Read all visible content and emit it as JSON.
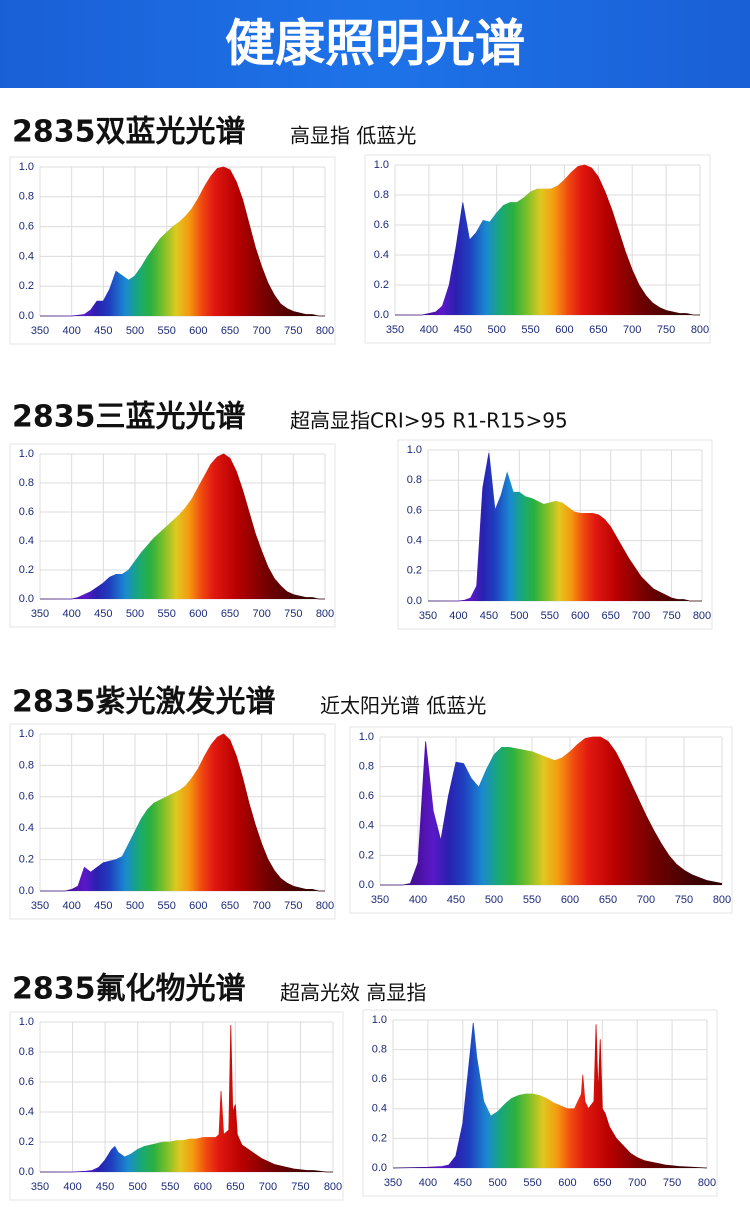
{
  "header": {
    "title": "健康照明光谱"
  },
  "sections": [
    {
      "title": "2835双蓝光光谱",
      "subtitle": "高显指 低蓝光"
    },
    {
      "title": "2835三蓝光光谱",
      "subtitle": "超高显指CRI>95  R1-R15>95"
    },
    {
      "title": "2835紫光激发光谱",
      "subtitle": "近太阳光谱 低蓝光"
    },
    {
      "title": "2835氟化物光谱",
      "subtitle": "超高光效 高显指"
    }
  ],
  "chart_data": [
    {
      "type": "area",
      "x": [
        350,
        360,
        370,
        380,
        390,
        400,
        410,
        420,
        430,
        440,
        450,
        460,
        470,
        480,
        490,
        500,
        510,
        520,
        530,
        540,
        550,
        560,
        570,
        580,
        590,
        600,
        610,
        620,
        630,
        640,
        650,
        660,
        670,
        680,
        690,
        700,
        710,
        720,
        730,
        740,
        750,
        760,
        770,
        780,
        790,
        800
      ],
      "values": [
        0,
        0,
        0,
        0,
        0,
        0,
        0.005,
        0.01,
        0.04,
        0.1,
        0.1,
        0.18,
        0.3,
        0.27,
        0.24,
        0.27,
        0.33,
        0.4,
        0.46,
        0.52,
        0.56,
        0.6,
        0.63,
        0.67,
        0.72,
        0.79,
        0.87,
        0.94,
        0.99,
        1.0,
        0.98,
        0.9,
        0.78,
        0.62,
        0.46,
        0.33,
        0.22,
        0.14,
        0.08,
        0.05,
        0.03,
        0.02,
        0.01,
        0.01,
        0,
        0
      ],
      "xlim": [
        350,
        800
      ],
      "ylim": [
        0,
        1
      ],
      "xticks": [
        350,
        400,
        450,
        500,
        550,
        600,
        650,
        700,
        750,
        800
      ],
      "yticks": [
        {
          "value": 0,
          "label": "0.0"
        },
        0.2,
        0.4,
        0.6,
        0.8,
        {
          "value": 1,
          "label": "1.0"
        }
      ],
      "grid": true
    },
    {
      "type": "area",
      "x": [
        350,
        360,
        370,
        380,
        390,
        400,
        410,
        420,
        430,
        440,
        450,
        460,
        470,
        480,
        490,
        500,
        510,
        520,
        530,
        540,
        550,
        560,
        570,
        580,
        590,
        600,
        610,
        620,
        630,
        640,
        650,
        660,
        670,
        680,
        690,
        700,
        710,
        720,
        730,
        740,
        750,
        760,
        770,
        780,
        790,
        800
      ],
      "values": [
        0,
        0,
        0,
        0,
        0,
        0.01,
        0.02,
        0.06,
        0.2,
        0.45,
        0.75,
        0.5,
        0.55,
        0.63,
        0.62,
        0.68,
        0.73,
        0.75,
        0.75,
        0.78,
        0.82,
        0.84,
        0.84,
        0.84,
        0.86,
        0.9,
        0.95,
        0.99,
        1.0,
        0.98,
        0.92,
        0.82,
        0.7,
        0.56,
        0.42,
        0.3,
        0.2,
        0.13,
        0.08,
        0.05,
        0.03,
        0.02,
        0.01,
        0.01,
        0,
        0
      ],
      "xlim": [
        350,
        800
      ],
      "ylim": [
        0,
        1
      ],
      "xticks": [
        350,
        400,
        450,
        500,
        550,
        600,
        650,
        700,
        750,
        800
      ],
      "yticks": [
        {
          "value": 0,
          "label": "0.0"
        },
        0.2,
        0.4,
        0.6,
        0.8,
        {
          "value": 1,
          "label": "1.0"
        }
      ],
      "grid": true
    },
    {
      "type": "area",
      "x": [
        350,
        360,
        370,
        380,
        390,
        400,
        410,
        420,
        430,
        440,
        450,
        460,
        470,
        480,
        490,
        500,
        510,
        520,
        530,
        540,
        550,
        560,
        570,
        580,
        590,
        600,
        610,
        620,
        630,
        640,
        650,
        660,
        670,
        680,
        690,
        700,
        710,
        720,
        730,
        740,
        750,
        760,
        770,
        780,
        790,
        800
      ],
      "values": [
        0,
        0,
        0,
        0,
        0,
        0,
        0.01,
        0.03,
        0.05,
        0.08,
        0.11,
        0.15,
        0.17,
        0.17,
        0.2,
        0.26,
        0.32,
        0.37,
        0.42,
        0.46,
        0.5,
        0.54,
        0.58,
        0.63,
        0.69,
        0.77,
        0.85,
        0.93,
        0.98,
        1.0,
        0.97,
        0.88,
        0.75,
        0.6,
        0.45,
        0.33,
        0.22,
        0.14,
        0.09,
        0.05,
        0.03,
        0.02,
        0.01,
        0.01,
        0,
        0
      ],
      "xlim": [
        350,
        800
      ],
      "ylim": [
        0,
        1
      ],
      "xticks": [
        350,
        400,
        450,
        500,
        550,
        600,
        650,
        700,
        750,
        800
      ],
      "yticks": [
        {
          "value": 0,
          "label": "0.0"
        },
        0.2,
        0.4,
        0.6,
        0.8,
        {
          "value": 1,
          "label": "1.0"
        }
      ],
      "grid": true
    },
    {
      "type": "area",
      "x": [
        350,
        360,
        370,
        380,
        390,
        400,
        410,
        420,
        430,
        440,
        450,
        460,
        470,
        480,
        490,
        500,
        510,
        520,
        530,
        540,
        550,
        560,
        570,
        580,
        590,
        600,
        610,
        620,
        630,
        640,
        650,
        660,
        670,
        680,
        690,
        700,
        710,
        720,
        730,
        740,
        750,
        760,
        770,
        780,
        790,
        800
      ],
      "values": [
        0,
        0,
        0,
        0,
        0,
        0,
        0.005,
        0.02,
        0.1,
        0.75,
        0.98,
        0.6,
        0.7,
        0.85,
        0.72,
        0.72,
        0.69,
        0.68,
        0.66,
        0.64,
        0.65,
        0.66,
        0.65,
        0.62,
        0.59,
        0.58,
        0.58,
        0.58,
        0.57,
        0.54,
        0.49,
        0.42,
        0.35,
        0.28,
        0.22,
        0.16,
        0.12,
        0.08,
        0.06,
        0.04,
        0.02,
        0.01,
        0.01,
        0,
        0,
        0
      ],
      "xlim": [
        350,
        800
      ],
      "ylim": [
        0,
        1
      ],
      "xticks": [
        350,
        400,
        450,
        500,
        550,
        600,
        650,
        700,
        750,
        800
      ],
      "yticks": [
        {
          "value": 0,
          "label": "0.0"
        },
        0.2,
        0.4,
        0.6,
        0.8,
        {
          "value": 1,
          "label": "1.0"
        }
      ],
      "grid": true
    },
    {
      "type": "area",
      "x": [
        350,
        360,
        370,
        380,
        390,
        400,
        410,
        420,
        430,
        440,
        450,
        460,
        470,
        480,
        490,
        500,
        510,
        520,
        530,
        540,
        550,
        560,
        570,
        580,
        590,
        600,
        610,
        620,
        630,
        640,
        650,
        660,
        670,
        680,
        690,
        700,
        710,
        720,
        730,
        740,
        750,
        760,
        770,
        780,
        790,
        800
      ],
      "values": [
        0,
        0,
        0,
        0,
        0,
        0.01,
        0.03,
        0.15,
        0.12,
        0.15,
        0.18,
        0.19,
        0.2,
        0.22,
        0.3,
        0.38,
        0.46,
        0.52,
        0.56,
        0.58,
        0.6,
        0.62,
        0.64,
        0.67,
        0.72,
        0.78,
        0.86,
        0.93,
        0.98,
        1.0,
        0.96,
        0.86,
        0.72,
        0.56,
        0.42,
        0.3,
        0.2,
        0.13,
        0.08,
        0.05,
        0.03,
        0.02,
        0.01,
        0.01,
        0,
        0
      ],
      "xlim": [
        350,
        800
      ],
      "ylim": [
        0,
        1
      ],
      "xticks": [
        350,
        400,
        450,
        500,
        550,
        600,
        650,
        700,
        750,
        800
      ],
      "yticks": [
        {
          "value": 0,
          "label": "0.0"
        },
        0.2,
        0.4,
        0.6,
        0.8,
        {
          "value": 1,
          "label": "1.0"
        }
      ],
      "grid": true
    },
    {
      "type": "area",
      "x": [
        350,
        360,
        370,
        380,
        390,
        400,
        410,
        420,
        430,
        440,
        450,
        460,
        470,
        480,
        490,
        500,
        510,
        520,
        530,
        540,
        550,
        560,
        570,
        580,
        590,
        600,
        610,
        620,
        630,
        640,
        650,
        660,
        670,
        680,
        690,
        700,
        710,
        720,
        730,
        740,
        750,
        760,
        770,
        780,
        790,
        800
      ],
      "values": [
        0,
        0,
        0,
        0,
        0.01,
        0.15,
        0.97,
        0.5,
        0.3,
        0.6,
        0.83,
        0.82,
        0.72,
        0.66,
        0.78,
        0.88,
        0.93,
        0.93,
        0.92,
        0.91,
        0.9,
        0.88,
        0.86,
        0.84,
        0.86,
        0.9,
        0.95,
        0.99,
        1.0,
        1.0,
        0.97,
        0.9,
        0.8,
        0.69,
        0.58,
        0.47,
        0.37,
        0.28,
        0.2,
        0.14,
        0.1,
        0.07,
        0.05,
        0.03,
        0.02,
        0.01
      ],
      "xlim": [
        350,
        800
      ],
      "ylim": [
        0,
        1
      ],
      "xticks": [
        350,
        400,
        450,
        500,
        550,
        600,
        650,
        700,
        750,
        800
      ],
      "yticks": [
        {
          "value": 0,
          "label": "0.0"
        },
        0.2,
        0.4,
        0.6,
        0.8,
        {
          "value": 1,
          "label": "1.0"
        }
      ],
      "grid": true
    },
    {
      "type": "area",
      "x": [
        350,
        400,
        420,
        430,
        440,
        450,
        460,
        465,
        470,
        480,
        490,
        500,
        510,
        520,
        530,
        540,
        550,
        560,
        570,
        580,
        590,
        600,
        610,
        620,
        625,
        628,
        632,
        640,
        643,
        646,
        650,
        653,
        660,
        670,
        680,
        690,
        700,
        710,
        720,
        730,
        740,
        750,
        760,
        770,
        780,
        790,
        800
      ],
      "values": [
        0,
        0,
        0.005,
        0.01,
        0.03,
        0.08,
        0.15,
        0.17,
        0.13,
        0.1,
        0.12,
        0.15,
        0.17,
        0.18,
        0.19,
        0.2,
        0.2,
        0.21,
        0.21,
        0.22,
        0.22,
        0.23,
        0.23,
        0.23,
        0.25,
        0.54,
        0.25,
        0.28,
        0.98,
        0.4,
        0.45,
        0.25,
        0.18,
        0.15,
        0.12,
        0.09,
        0.07,
        0.05,
        0.04,
        0.03,
        0.02,
        0.015,
        0.01,
        0.01,
        0.005,
        0,
        0
      ],
      "xlim": [
        350,
        800
      ],
      "ylim": [
        0,
        1
      ],
      "xticks": [
        350,
        400,
        450,
        500,
        550,
        600,
        650,
        700,
        750,
        800
      ],
      "yticks": [
        {
          "value": 0,
          "label": "0.0"
        },
        0.2,
        0.4,
        0.6,
        0.8,
        {
          "value": 1,
          "label": "1.0"
        }
      ],
      "grid": true
    },
    {
      "type": "area",
      "x": [
        350,
        400,
        420,
        430,
        440,
        450,
        460,
        465,
        470,
        480,
        490,
        500,
        510,
        520,
        530,
        540,
        550,
        560,
        570,
        580,
        590,
        600,
        610,
        615,
        620,
        622,
        625,
        630,
        638,
        641,
        644,
        647,
        650,
        654,
        660,
        670,
        680,
        690,
        700,
        710,
        720,
        730,
        740,
        750,
        760,
        780,
        800
      ],
      "values": [
        0,
        0.005,
        0.01,
        0.02,
        0.08,
        0.3,
        0.75,
        0.98,
        0.75,
        0.45,
        0.35,
        0.38,
        0.43,
        0.47,
        0.49,
        0.5,
        0.5,
        0.49,
        0.47,
        0.44,
        0.42,
        0.4,
        0.4,
        0.45,
        0.5,
        0.63,
        0.45,
        0.4,
        0.45,
        0.97,
        0.5,
        0.87,
        0.4,
        0.37,
        0.28,
        0.2,
        0.15,
        0.1,
        0.07,
        0.05,
        0.04,
        0.03,
        0.02,
        0.015,
        0.01,
        0.005,
        0
      ],
      "xlim": [
        350,
        800
      ],
      "ylim": [
        0,
        1
      ],
      "xticks": [
        350,
        400,
        450,
        500,
        550,
        600,
        650,
        700,
        750,
        800
      ],
      "yticks": [
        {
          "value": 0,
          "label": "0.0"
        },
        0.2,
        0.4,
        0.6,
        0.8,
        {
          "value": 1,
          "label": "1.0"
        }
      ],
      "grid": true
    }
  ]
}
